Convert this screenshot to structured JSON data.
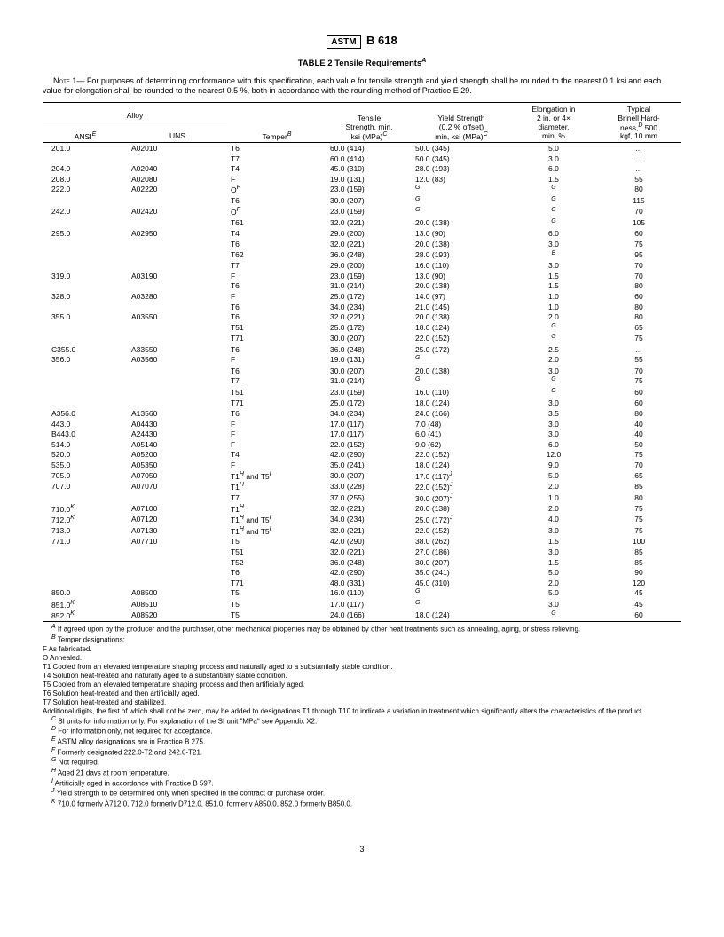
{
  "header": {
    "logo": "ASTM",
    "spec": "B 618"
  },
  "table": {
    "title": "TABLE 2  Tensile Requirements",
    "title_sup": "A",
    "note": {
      "label": "Note",
      "num": "1",
      "text": "— For purposes of determining conformance with this specification, each value for tensile strength and yield strength shall be rounded to the nearest 0.1 ksi and each value for elongation shall be rounded to the nearest 0.5 %, both in accordance with the rounding method of Practice E 29."
    },
    "headers": {
      "alloy": "Alloy",
      "ansi": "ANSI",
      "ansi_sup": "E",
      "uns": "UNS",
      "temper": "Temper",
      "temper_sup": "B",
      "tensile_l1": "Tensile",
      "tensile_l2": "Strength, min,",
      "tensile_l3": "ksi (MPa)",
      "tensile_sup": "C",
      "yield_l1": "Yield Strength",
      "yield_l2": "(0.2 % offset)",
      "yield_l3": "min, ksi (MPa)",
      "yield_sup": "C",
      "elong_l1": "Elongation in",
      "elong_l2": "2 in. or 4×",
      "elong_l3": "diameter,",
      "elong_l4": "min, %",
      "bhn_l1": "Typical",
      "bhn_l2": "Brinell Hard-",
      "bhn_l3": "ness,",
      "bhn_sup": "D",
      "bhn_l3b": " 500",
      "bhn_l4": "kgf, 10 mm"
    },
    "rows": [
      {
        "ansi": "201.0",
        "uns": "A02010",
        "temper": "T6",
        "ts": "60.0 (414)",
        "ys": "50.0 (345)",
        "el": "5.0",
        "bh": "..."
      },
      {
        "temper": "T7",
        "ts": "60.0 (414)",
        "ys": "50.0 (345)",
        "el": "3.0",
        "bh": "..."
      },
      {
        "ansi": "204.0",
        "uns": "A02040",
        "temper": "T4",
        "ts": "45.0 (310)",
        "ys": "28.0 (193)",
        "el": "6.0",
        "bh": "..."
      },
      {
        "ansi": "208.0",
        "uns": "A02080",
        "temper": "F",
        "ts": "19.0 (131)",
        "ys": "12.0 (83)",
        "el": "1.5",
        "bh": "55"
      },
      {
        "ansi": "222.0",
        "uns": "A02220",
        "temper": "O",
        "temper_sup": "F",
        "ts": "23.0 (159)",
        "ys_sup": "G",
        "el_sup": "G",
        "bh": "80"
      },
      {
        "temper": "T6",
        "ts": "30.0 (207)",
        "ys_sup": "G",
        "el_sup": "G",
        "bh": "115"
      },
      {
        "ansi": "242.0",
        "uns": "A02420",
        "temper": "O",
        "temper_sup": "F",
        "ts": "23.0 (159)",
        "ys_sup": "G",
        "el_sup": "G",
        "bh": "70"
      },
      {
        "temper": "T61",
        "ts": "32.0 (221)",
        "ys": "20.0 (138)",
        "el_sup": "G",
        "bh": "105"
      },
      {
        "ansi": "295.0",
        "uns": "A02950",
        "temper": "T4",
        "ts": "29.0 (200)",
        "ys": "13.0 (90)",
        "el": "6.0",
        "bh": "60"
      },
      {
        "temper": "T6",
        "ts": "32.0 (221)",
        "ys": "20.0 (138)",
        "el": "3.0",
        "bh": "75"
      },
      {
        "temper": "T62",
        "ts": "36.0 (248)",
        "ys": "28.0 (193)",
        "el_sup": "B",
        "bh": "95"
      },
      {
        "temper": "T7",
        "ts": "29.0 (200)",
        "ys": "16.0 (110)",
        "el": "3.0",
        "bh": "70"
      },
      {
        "ansi": "319.0",
        "uns": "A03190",
        "temper": "F",
        "ts": "23.0 (159)",
        "ys": "13.0 (90)",
        "el": "1.5",
        "bh": "70"
      },
      {
        "temper": "T6",
        "ts": "31.0 (214)",
        "ys": "20.0 (138)",
        "el": "1.5",
        "bh": "80"
      },
      {
        "ansi": "328.0",
        "uns": "A03280",
        "temper": "F",
        "ts": "25.0 (172)",
        "ys": "14.0 (97)",
        "el": "1.0",
        "bh": "60"
      },
      {
        "temper": "T6",
        "ts": "34.0 (234)",
        "ys": "21.0 (145)",
        "el": "1.0",
        "bh": "80"
      },
      {
        "ansi": "355.0",
        "uns": "A03550",
        "temper": "T6",
        "ts": "32.0 (221)",
        "ys": "20.0 (138)",
        "el": "2.0",
        "bh": "80"
      },
      {
        "temper": "T51",
        "ts": "25.0 (172)",
        "ys": "18.0 (124)",
        "el_sup": "G",
        "bh": "65"
      },
      {
        "temper": "T71",
        "ts": "30.0 (207)",
        "ys": "22.0 (152)",
        "el_sup": "G",
        "bh": "75"
      },
      {
        "ansi": "C355.0",
        "uns": "A33550",
        "temper": "T6",
        "ts": "36.0 (248)",
        "ys": "25.0 (172)",
        "el": "2.5",
        "bh": "..."
      },
      {
        "ansi": "356.0",
        "uns": "A03560",
        "temper": "F",
        "ts": "19.0 (131)",
        "ys_sup": "G",
        "el": "2.0",
        "bh": "55"
      },
      {
        "temper": "T6",
        "ts": "30.0 (207)",
        "ys": "20.0 (138)",
        "el": "3.0",
        "bh": "70"
      },
      {
        "temper": "T7",
        "ts": "31.0 (214)",
        "ys_sup": "G",
        "el_sup": "G",
        "bh": "75"
      },
      {
        "temper": "T51",
        "ts": "23.0 (159)",
        "ys": "16.0 (110)",
        "el_sup": "G",
        "bh": "60"
      },
      {
        "temper": "T71",
        "ts": "25.0 (172)",
        "ys": "18.0 (124)",
        "el": "3.0",
        "bh": "60"
      },
      {
        "ansi": "A356.0",
        "uns": "A13560",
        "temper": "T6",
        "ts": "34.0 (234)",
        "ys": "24.0 (166)",
        "el": "3.5",
        "bh": "80"
      },
      {
        "ansi": "443.0",
        "uns": "A04430",
        "temper": "F",
        "ts": "17.0 (117)",
        "ys": "7.0 (48)",
        "el": "3.0",
        "bh": "40"
      },
      {
        "ansi": "B443.0",
        "uns": "A24430",
        "temper": "F",
        "ts": "17.0 (117)",
        "ys": "6.0 (41)",
        "el": "3.0",
        "bh": "40"
      },
      {
        "ansi": "514.0",
        "uns": "A05140",
        "temper": "F",
        "ts": "22.0 (152)",
        "ys": "9.0 (62)",
        "el": "6.0",
        "bh": "50"
      },
      {
        "ansi": "520.0",
        "uns": "A05200",
        "temper": "T4",
        "ts": "42.0 (290)",
        "ys": "22.0 (152)",
        "el": "12.0",
        "bh": "75"
      },
      {
        "ansi": "535.0",
        "uns": "A05350",
        "temper": "F",
        "ts": "35.0 (241)",
        "ys": "18.0 (124)",
        "el": "9.0",
        "bh": "70"
      },
      {
        "ansi": "705.0",
        "uns": "A07050",
        "temper": "T1",
        "temper_sup": "H",
        "temper_extra": " and T5",
        "temper_extra_sup": "I",
        "ts": "30.0 (207)",
        "ys": "17.0 (117)",
        "ys_sup": "J",
        "el": "5.0",
        "bh": "65"
      },
      {
        "ansi": "707.0",
        "uns": "A07070",
        "temper": "T1",
        "temper_sup": "H",
        "ts": "33.0 (228)",
        "ys": "22.0 (152)",
        "ys_sup": "J",
        "el": "2.0",
        "bh": "85"
      },
      {
        "temper": "T7",
        "ts": "37.0 (255)",
        "ys": "30.0 (207)",
        "ys_sup": "J",
        "el": "1.0",
        "bh": "80"
      },
      {
        "ansi": "710.0",
        "ansi_sup": "K",
        "uns": "A07100",
        "temper": "T1",
        "temper_sup": "H",
        "ts": "32.0 (221)",
        "ys": "20.0 (138)",
        "el": "2.0",
        "bh": "75"
      },
      {
        "ansi": "712.0",
        "ansi_sup": "K",
        "uns": "A07120",
        "temper": "T1",
        "temper_sup": "H",
        "temper_extra": " and T5",
        "temper_extra_sup": "I",
        "ts": "34.0 (234)",
        "ys": "25.0 (172)",
        "ys_sup": "J",
        "el": "4.0",
        "bh": "75"
      },
      {
        "ansi": "713.0",
        "uns": "A07130",
        "temper": "T1",
        "temper_sup": "H",
        "temper_extra": " and T5",
        "temper_extra_sup": "I",
        "ts": "32.0 (221)",
        "ys": "22.0 (152)",
        "el": "3.0",
        "bh": "75"
      },
      {
        "ansi": "771.0",
        "uns": "A07710",
        "temper": "T5",
        "ts": "42.0 (290)",
        "ys": "38.0 (262)",
        "el": "1.5",
        "bh": "100"
      },
      {
        "temper": "T51",
        "ts": "32.0 (221)",
        "ys": "27.0 (186)",
        "el": "3.0",
        "bh": "85"
      },
      {
        "temper": "T52",
        "ts": "36.0 (248)",
        "ys": "30.0 (207)",
        "el": "1.5",
        "bh": "85"
      },
      {
        "temper": "T6",
        "ts": "42.0 (290)",
        "ys": "35.0 (241)",
        "el": "5.0",
        "bh": "90"
      },
      {
        "temper": "T71",
        "ts": "48.0 (331)",
        "ys": "45.0 (310)",
        "el": "2.0",
        "bh": "120"
      },
      {
        "ansi": "850.0",
        "uns": "A08500",
        "temper": "T5",
        "ts": "16.0 (110)",
        "ys_sup": "G",
        "el": "5.0",
        "bh": "45"
      },
      {
        "ansi": "851.0",
        "ansi_sup": "K",
        "uns": "A08510",
        "temper": "T5",
        "ts": "17.0 (117)",
        "ys_sup": "G",
        "el": "3.0",
        "bh": "45"
      },
      {
        "ansi": "852.0",
        "ansi_sup": "K",
        "uns": "A08520",
        "temper": "T5",
        "ts": "24.0 (166)",
        "ys": "18.0 (124)",
        "el_sup": "G",
        "bh": "60"
      }
    ]
  },
  "footnotes": [
    {
      "sup": "A",
      "indent": true,
      "text": "If agreed upon by the producer and the purchaser, other mechanical properties may be obtained by other heat treatments such as annealing, aging, or stress relieving."
    },
    {
      "sup": "B",
      "indent": true,
      "text": "Temper designations:"
    },
    {
      "text": "F As fabricated.",
      "indent": false
    },
    {
      "text": "O Annealed.",
      "indent": false
    },
    {
      "text": "T1 Cooled from an elevated temperature shaping process and naturally aged to a substantially stable condition.",
      "indent": false
    },
    {
      "text": "T4 Solution heat-treated and naturally aged to a substantially stable condition.",
      "indent": false
    },
    {
      "text": "T5 Cooled from an elevated temperature shaping process and then artificially aged.",
      "indent": false
    },
    {
      "text": "T6 Solution heat-treated and then artificially aged.",
      "indent": false
    },
    {
      "text": "T7 Solution heat-treated and stabilized.",
      "indent": false
    },
    {
      "text": "Additional digits, the first of which shall not be zero, may be added to designations T1 through T10 to indicate a variation in treatment which significantly alters the characteristics of the product.",
      "indent": false
    },
    {
      "sup": "C",
      "indent": true,
      "text": "SI units for information only. For explanation of the SI unit \"MPa\" see Appendix X2."
    },
    {
      "sup": "D",
      "indent": true,
      "text": "For information only, not required for acceptance."
    },
    {
      "sup": "E",
      "indent": true,
      "text": "ASTM alloy designations are in Practice B 275."
    },
    {
      "sup": "F",
      "indent": true,
      "text": "Formerly designated 222.0-T2 and 242.0-T21."
    },
    {
      "sup": "G",
      "indent": true,
      "text": "Not required."
    },
    {
      "sup": "H",
      "indent": true,
      "text": "Aged 21 days at room temperature."
    },
    {
      "sup": "I",
      "indent": true,
      "text": "Artificially aged in accordance with Practice B 597."
    },
    {
      "sup": "J",
      "indent": true,
      "text": "Yield strength to be determined only when specified in the contract or purchase order."
    },
    {
      "sup": "K",
      "indent": true,
      "text": "710.0 formerly A712.0, 712.0 formerly D712.0, 851.0, formerly A850.0, 852.0 formerly B850.0."
    }
  ],
  "page_number": "3"
}
